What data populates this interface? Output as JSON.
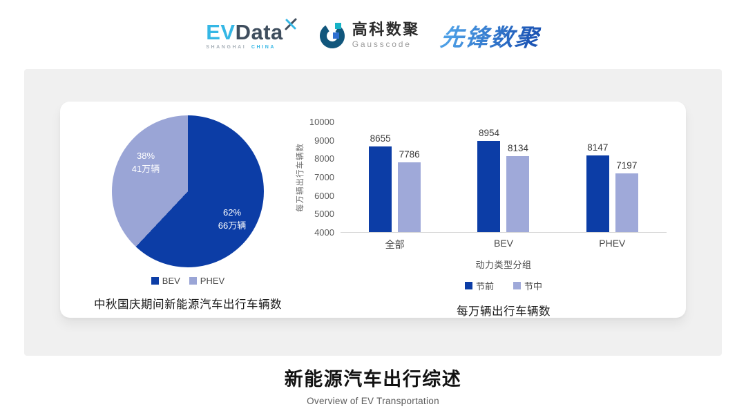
{
  "header": {
    "evdata": {
      "ev": "EV",
      "data": "Data",
      "sub_left": "SHANGHAI",
      "sub_right": "CHINA"
    },
    "gausscode": {
      "cn": "高科数聚",
      "en": "Gausscode"
    },
    "pioneer": {
      "cn": "先锋数聚"
    }
  },
  "footer": {
    "title": "新能源汽车出行综述",
    "subtitle": "Overview of EV Transportation"
  },
  "colors": {
    "series_primary": "#0c3da6",
    "series_secondary": "#9aa5d6",
    "panel_bg": "#f0f0f0",
    "card_bg": "#ffffff"
  },
  "chart_data": [
    {
      "type": "pie",
      "title": "中秋国庆期间新能源汽车出行车辆数",
      "start_angle": "top",
      "direction": "clockwise",
      "unit": "万辆",
      "slices": [
        {
          "name": "BEV",
          "percent": 62,
          "value": 66,
          "label_pct": "62%",
          "label_val": "66万辆",
          "color": "#0c3da6"
        },
        {
          "name": "PHEV",
          "percent": 38,
          "value": 41,
          "label_pct": "38%",
          "label_val": "41万辆",
          "color": "#9aa5d6"
        }
      ],
      "legend": [
        "BEV",
        "PHEV"
      ],
      "legend_position": "bottom"
    },
    {
      "type": "bar",
      "title": "每万辆出行车辆数",
      "categories": [
        "全部",
        "BEV",
        "PHEV"
      ],
      "series": [
        {
          "name": "节前",
          "values": [
            8655,
            8954,
            8147
          ],
          "color": "#0c3da6"
        },
        {
          "name": "节中",
          "values": [
            7786,
            8134,
            7197
          ],
          "color": "#9fa9d9"
        }
      ],
      "xlabel": "动力类型分组",
      "ylabel": "每万辆出行车辆数",
      "ylim": [
        4000,
        10000
      ],
      "ytick_step": 1000,
      "grid": false,
      "legend": [
        "节前",
        "节中"
      ],
      "legend_position": "bottom",
      "data_labels": true
    }
  ]
}
